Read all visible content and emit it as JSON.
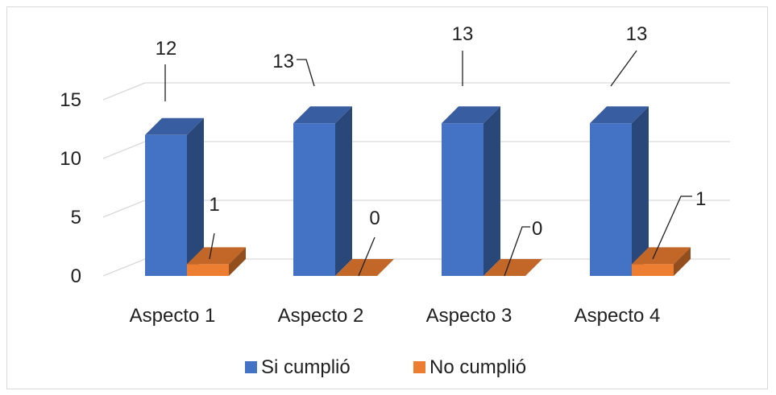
{
  "chart_data": {
    "type": "bar",
    "categories": [
      "Aspecto 1",
      "Aspecto 2",
      "Aspecto 3",
      "Aspecto 4"
    ],
    "series": [
      {
        "name": "Si cumplió",
        "values": [
          12,
          13,
          13,
          13
        ],
        "color": "#4472C4"
      },
      {
        "name": "No cumplió",
        "values": [
          1,
          0,
          0,
          1
        ],
        "color": "#ED7D31"
      }
    ],
    "yticks": [
      "0",
      "5",
      "10",
      "15"
    ],
    "ylim": [
      0,
      15
    ],
    "grid": true,
    "legend_position": "bottom",
    "data_labels": true
  }
}
